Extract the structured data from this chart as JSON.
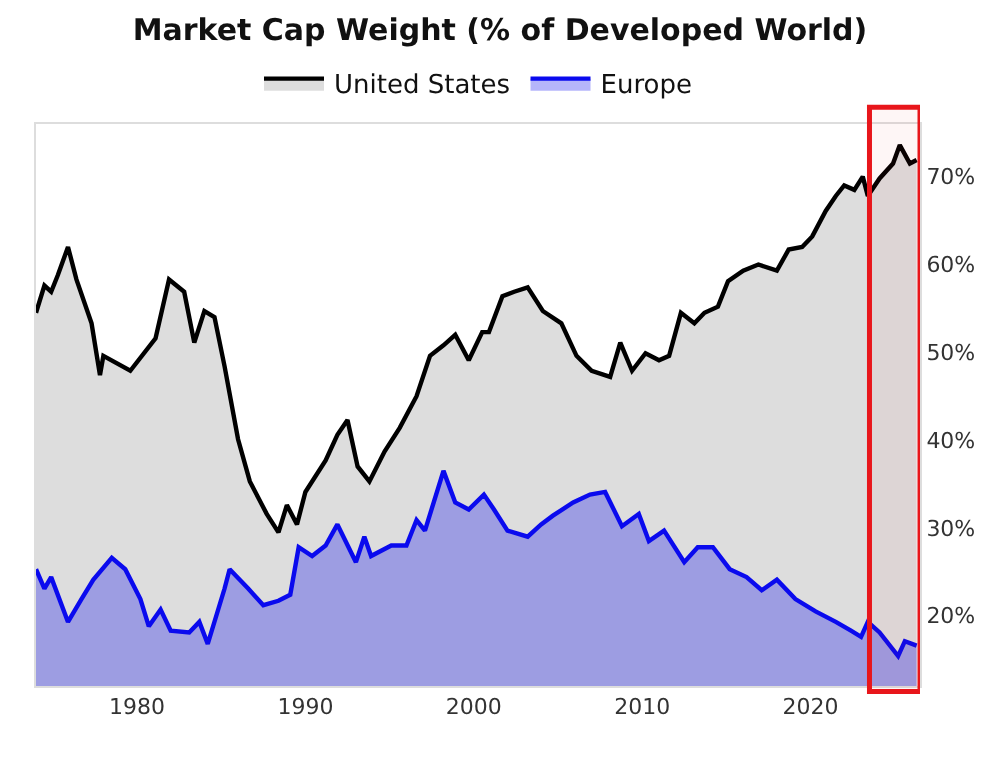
{
  "chart_data": {
    "type": "area",
    "title": "Market Cap Weight (% of Developed World)",
    "xlim": [
      1974,
      2026.5
    ],
    "xticks": [
      1980,
      1990,
      2000,
      2010,
      2020
    ],
    "ylim": [
      12,
      76
    ],
    "yticks": [
      {
        "value": 20,
        "label": "20%"
      },
      {
        "value": 30,
        "label": "30%"
      },
      {
        "value": 40,
        "label": "40%"
      },
      {
        "value": 50,
        "label": "50%"
      },
      {
        "value": 60,
        "label": "60%"
      },
      {
        "value": 70,
        "label": "70%"
      }
    ],
    "legend": "top",
    "bands": [
      {
        "axis": "x",
        "from": 2023.5,
        "to": 2026.5,
        "color": "#e8161b"
      }
    ],
    "series": [
      {
        "name": "United States",
        "color": "#000000",
        "x": [
          1974.0,
          1974.5,
          1974.9,
          1975.3,
          1975.9,
          1976.4,
          1977.3,
          1977.8,
          1978.0,
          1979.6,
          1981.1,
          1981.9,
          1982.8,
          1983.4,
          1984.0,
          1984.6,
          1985.2,
          1986.0,
          1986.7,
          1987.7,
          1988.4,
          1988.9,
          1989.5,
          1990.0,
          1991.2,
          1991.9,
          1992.5,
          1993.1,
          1993.8,
          1994.7,
          1995.6,
          1996.6,
          1997.4,
          1998.2,
          1998.9,
          1999.7,
          2000.5,
          2000.9,
          2001.7,
          2002.4,
          2003.2,
          2004.1,
          2005.2,
          2006.1,
          2007.0,
          2008.1,
          2008.7,
          2009.4,
          2010.2,
          2011.0,
          2011.6,
          2012.3,
          2013.1,
          2013.7,
          2014.5,
          2015.1,
          2016.0,
          2016.9,
          2018.0,
          2018.7,
          2019.5,
          2020.1,
          2020.9,
          2021.5,
          2022.0,
          2022.6,
          2023.1,
          2023.4,
          2024.1,
          2024.9,
          2025.3,
          2025.9,
          2026.3
        ],
        "values": [
          54.5,
          57.6,
          56.9,
          58.8,
          62.0,
          58.3,
          53.3,
          47.4,
          49.6,
          47.9,
          51.6,
          58.3,
          56.9,
          51.1,
          54.7,
          54.0,
          48.4,
          40.1,
          35.3,
          31.6,
          29.5,
          32.6,
          30.4,
          34.1,
          37.7,
          40.6,
          42.3,
          37.0,
          35.3,
          38.7,
          41.4,
          45.0,
          49.6,
          50.8,
          52.0,
          49.1,
          52.3,
          52.3,
          56.4,
          56.9,
          57.4,
          54.7,
          53.3,
          49.6,
          47.9,
          47.2,
          51.1,
          47.9,
          49.9,
          49.1,
          49.6,
          54.5,
          53.3,
          54.5,
          55.2,
          58.1,
          59.3,
          60.0,
          59.3,
          61.7,
          62.0,
          63.2,
          66.1,
          67.8,
          69.0,
          68.5,
          70.0,
          67.8,
          69.8,
          71.5,
          73.6,
          71.5,
          71.9
        ]
      },
      {
        "name": "Europe",
        "color": "#0a0aee",
        "x": [
          1974.0,
          1974.5,
          1974.9,
          1975.9,
          1976.7,
          1977.4,
          1978.5,
          1979.3,
          1980.2,
          1980.7,
          1981.4,
          1982.0,
          1983.1,
          1983.7,
          1984.2,
          1985.2,
          1985.5,
          1986.6,
          1987.5,
          1988.4,
          1989.1,
          1989.6,
          1990.4,
          1991.2,
          1991.9,
          1993.0,
          1993.5,
          1993.9,
          1995.1,
          1996.0,
          1996.6,
          1997.1,
          1998.2,
          1998.9,
          1999.7,
          2000.6,
          2001.2,
          2002.0,
          2003.2,
          2004.0,
          2004.7,
          2005.9,
          2006.9,
          2007.8,
          2008.8,
          2009.8,
          2010.4,
          2011.3,
          2012.5,
          2013.3,
          2014.2,
          2015.2,
          2016.2,
          2017.1,
          2018.0,
          2019.1,
          2020.3,
          2021.5,
          2022.4,
          2023.0,
          2023.4,
          2024.1,
          2025.2,
          2025.6,
          2026.3
        ],
        "values": [
          25.3,
          23.1,
          24.4,
          19.3,
          21.9,
          24.1,
          26.6,
          25.3,
          21.9,
          18.8,
          20.7,
          18.3,
          18.1,
          19.3,
          16.8,
          23.1,
          25.3,
          23.1,
          21.2,
          21.7,
          22.4,
          27.8,
          26.8,
          28.0,
          30.4,
          26.1,
          29.0,
          26.8,
          28.0,
          28.0,
          30.9,
          29.7,
          36.5,
          32.9,
          32.1,
          33.8,
          32.1,
          29.7,
          29.0,
          30.4,
          31.4,
          32.9,
          33.8,
          34.1,
          30.2,
          31.6,
          28.5,
          29.7,
          26.1,
          27.8,
          27.8,
          25.3,
          24.4,
          22.9,
          24.1,
          21.9,
          20.5,
          19.3,
          18.3,
          17.6,
          19.3,
          18.1,
          15.4,
          17.1,
          16.6
        ]
      }
    ]
  }
}
